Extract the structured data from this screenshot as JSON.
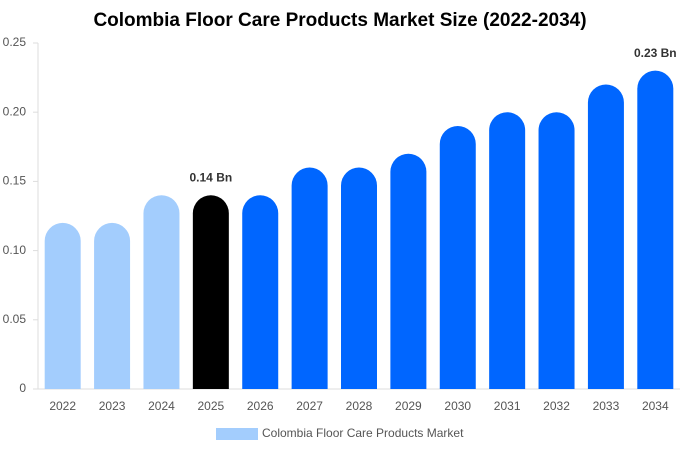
{
  "chart_data": {
    "type": "bar",
    "title": "Colombia Floor Care Products Market Size (2022-2034)",
    "categories": [
      "2022",
      "2023",
      "2024",
      "2025",
      "2026",
      "2027",
      "2028",
      "2029",
      "2030",
      "2031",
      "2032",
      "2033",
      "2034"
    ],
    "series": [
      {
        "name": "Colombia Floor Care Products Market",
        "color": "#a3cdfd",
        "values": [
          0.12,
          0.12,
          0.14,
          0.14,
          0.14,
          0.16,
          0.16,
          0.17,
          0.19,
          0.2,
          0.2,
          0.22,
          0.23
        ],
        "value_labels": [
          null,
          null,
          null,
          "0.14 Bn",
          null,
          null,
          null,
          null,
          null,
          null,
          null,
          null,
          "0.23 Bn"
        ],
        "bar_colors": [
          "#a3cdfd",
          "#a3cdfd",
          "#a3cdfd",
          "#000000",
          "#0066ff",
          "#0066ff",
          "#0066ff",
          "#0066ff",
          "#0066ff",
          "#0066ff",
          "#0066ff",
          "#0066ff",
          "#0066ff"
        ]
      }
    ],
    "ylim": [
      0,
      0.25
    ],
    "yticks": [
      0,
      0.05,
      {
        "value": 0.1,
        "label": "0.10"
      },
      0.15,
      {
        "value": 0.2,
        "label": "0.20"
      },
      0.25
    ],
    "grid": false,
    "legend": "bottom"
  }
}
